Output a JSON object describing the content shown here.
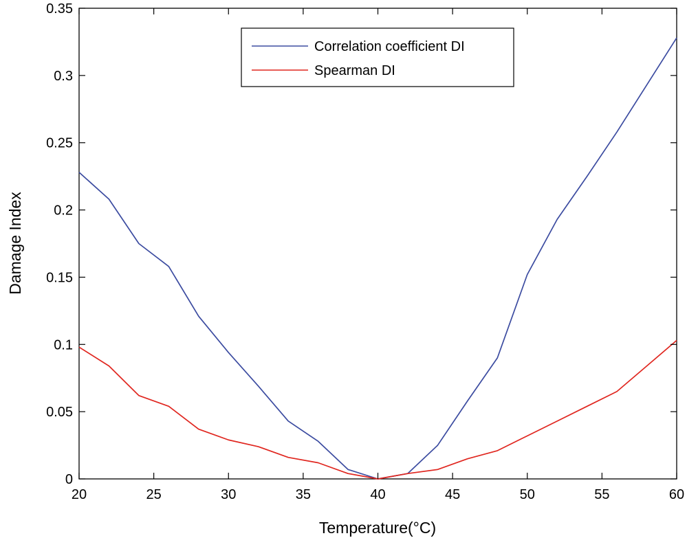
{
  "chart_data": {
    "type": "line",
    "title": "",
    "xlabel": "Temperature(°C)",
    "ylabel": "Damage Index",
    "xlim": [
      20,
      60
    ],
    "ylim": [
      0,
      0.35
    ],
    "xticks": [
      20,
      25,
      30,
      35,
      40,
      45,
      50,
      55,
      60
    ],
    "xtick_labels": [
      "20",
      "25",
      "30",
      "35",
      "40",
      "45",
      "50",
      "55",
      "60"
    ],
    "yticks": [
      0,
      0.05,
      0.1,
      0.15,
      0.2,
      0.25,
      0.3,
      0.35
    ],
    "ytick_labels": [
      "0",
      "0.05",
      "0.1",
      "0.15",
      "0.2",
      "0.25",
      "0.3",
      "0.35"
    ],
    "grid": false,
    "legend_position": "top-center",
    "series": [
      {
        "name": "Correlation coefficient DI",
        "color": "#3b4ba0",
        "x": [
          20,
          22,
          24,
          26,
          28,
          30,
          32,
          34,
          36,
          38,
          40,
          42,
          44,
          46,
          48,
          50,
          52,
          54,
          56,
          58,
          60
        ],
        "values": [
          0.228,
          0.208,
          0.175,
          0.158,
          0.121,
          0.094,
          0.069,
          0.043,
          0.028,
          0.007,
          0.0,
          0.004,
          0.025,
          0.058,
          0.09,
          0.152,
          0.193,
          0.225,
          0.258,
          0.293,
          0.328
        ]
      },
      {
        "name": "Spearman DI",
        "color": "#e0261f",
        "x": [
          20,
          22,
          24,
          26,
          28,
          30,
          32,
          34,
          36,
          38,
          40,
          42,
          44,
          46,
          48,
          50,
          52,
          54,
          56,
          58,
          60
        ],
        "values": [
          0.098,
          0.084,
          0.062,
          0.054,
          0.037,
          0.029,
          0.024,
          0.016,
          0.012,
          0.004,
          0.0,
          0.004,
          0.007,
          0.015,
          0.021,
          0.032,
          0.043,
          0.054,
          0.065,
          0.084,
          0.103
        ]
      }
    ]
  }
}
